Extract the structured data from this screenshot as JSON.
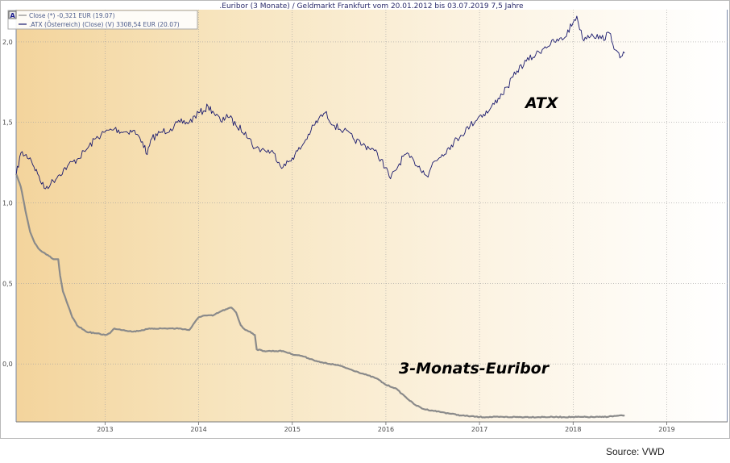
{
  "chart_data": {
    "type": "line",
    "title": ".Euribor (3 Monate) / Geldmarkt Frankfurt vom 20.01.2012 bis 03.07.2019 7,5 Jahre",
    "y_ticks": [
      "2,0",
      "1,5",
      "1,0",
      "0,5",
      "0,0"
    ],
    "y_tick_values": [
      2.0,
      1.5,
      1.0,
      0.5,
      0.0
    ],
    "ylim": [
      -0.36,
      2.2
    ],
    "xlim": [
      2012.05,
      2019.65
    ],
    "x_ticks": [
      "2013",
      "2014",
      "2015",
      "2016",
      "2017",
      "2018",
      "2019"
    ],
    "x_tick_values": [
      2013,
      2014,
      2015,
      2016,
      2017,
      2018,
      2019
    ],
    "legend": [
      {
        "label": "Close (*) -0,321 EUR (19.07)",
        "color": "#8a8a8a"
      },
      {
        "label": ".ATX (Österreich) (Close) (V) 3308,54 EUR (20.07)",
        "color": "#1a1a6e"
      }
    ],
    "annotations": [
      {
        "text": "ATX",
        "series": "atx"
      },
      {
        "text": "3-Monats-Euribor",
        "series": "euribor"
      }
    ],
    "series": [
      {
        "id": "atx",
        "color": "#1a1a6e",
        "x": [
          2012.05,
          2012.1,
          2012.2,
          2012.28,
          2012.35,
          2012.42,
          2012.5,
          2012.6,
          2012.7,
          2012.8,
          2012.9,
          2013.0,
          2013.1,
          2013.2,
          2013.3,
          2013.4,
          2013.45,
          2013.5,
          2013.6,
          2013.7,
          2013.8,
          2013.9,
          2014.0,
          2014.05,
          2014.1,
          2014.15,
          2014.25,
          2014.3,
          2014.4,
          2014.5,
          2014.6,
          2014.7,
          2014.8,
          2014.9,
          2015.0,
          2015.1,
          2015.2,
          2015.28,
          2015.35,
          2015.45,
          2015.55,
          2015.65,
          2015.75,
          2015.85,
          2015.95,
          2016.05,
          2016.1,
          2016.2,
          2016.3,
          2016.4,
          2016.45,
          2016.5,
          2016.6,
          2016.7,
          2016.8,
          2016.9,
          2017.0,
          2017.1,
          2017.2,
          2017.3,
          2017.4,
          2017.5,
          2017.6,
          2017.7,
          2017.8,
          2017.9,
          2018.0,
          2018.04,
          2018.1,
          2018.2,
          2018.3,
          2018.4,
          2018.45,
          2018.5,
          2018.55
        ],
        "y": [
          1.17,
          1.31,
          1.28,
          1.18,
          1.09,
          1.12,
          1.17,
          1.23,
          1.27,
          1.33,
          1.4,
          1.44,
          1.46,
          1.44,
          1.45,
          1.38,
          1.3,
          1.4,
          1.44,
          1.46,
          1.5,
          1.5,
          1.56,
          1.57,
          1.6,
          1.57,
          1.5,
          1.55,
          1.48,
          1.44,
          1.34,
          1.33,
          1.31,
          1.22,
          1.28,
          1.35,
          1.45,
          1.52,
          1.56,
          1.48,
          1.45,
          1.4,
          1.36,
          1.34,
          1.27,
          1.15,
          1.2,
          1.3,
          1.26,
          1.2,
          1.16,
          1.25,
          1.3,
          1.36,
          1.42,
          1.48,
          1.54,
          1.57,
          1.65,
          1.72,
          1.82,
          1.88,
          1.92,
          1.97,
          2.0,
          2.02,
          2.12,
          2.16,
          2.02,
          2.05,
          2.02,
          2.05,
          1.95,
          1.9,
          1.93
        ]
      },
      {
        "id": "euribor",
        "color": "#8a8a8a",
        "x": [
          2012.05,
          2012.1,
          2012.15,
          2012.2,
          2012.25,
          2012.3,
          2012.35,
          2012.4,
          2012.45,
          2012.5,
          2012.52,
          2012.55,
          2012.6,
          2012.65,
          2012.7,
          2012.8,
          2012.9,
          2013.0,
          2013.05,
          2013.1,
          2013.2,
          2013.3,
          2013.5,
          2013.6,
          2013.8,
          2013.9,
          2014.0,
          2014.05,
          2014.15,
          2014.25,
          2014.3,
          2014.35,
          2014.4,
          2014.45,
          2014.5,
          2014.55,
          2014.6,
          2014.62,
          2014.7,
          2014.9,
          2015.0,
          2015.1,
          2015.2,
          2015.3,
          2015.4,
          2015.5,
          2015.6,
          2015.7,
          2015.8,
          2015.9,
          2016.0,
          2016.1,
          2016.2,
          2016.3,
          2016.4,
          2016.5,
          2016.6,
          2016.7,
          2016.8,
          2017.0,
          2017.5,
          2018.0,
          2018.3,
          2018.55
        ],
        "y": [
          1.18,
          1.1,
          0.95,
          0.82,
          0.75,
          0.71,
          0.69,
          0.67,
          0.65,
          0.65,
          0.55,
          0.45,
          0.37,
          0.29,
          0.24,
          0.2,
          0.19,
          0.18,
          0.19,
          0.22,
          0.21,
          0.2,
          0.22,
          0.22,
          0.22,
          0.21,
          0.29,
          0.3,
          0.3,
          0.33,
          0.34,
          0.35,
          0.32,
          0.24,
          0.21,
          0.2,
          0.18,
          0.09,
          0.08,
          0.08,
          0.06,
          0.05,
          0.03,
          0.01,
          0.0,
          -0.01,
          -0.03,
          -0.05,
          -0.07,
          -0.09,
          -0.13,
          -0.15,
          -0.2,
          -0.25,
          -0.28,
          -0.29,
          -0.3,
          -0.31,
          -0.32,
          -0.33,
          -0.33,
          -0.33,
          -0.33,
          -0.32
        ]
      }
    ]
  },
  "source": "Source: VWD"
}
